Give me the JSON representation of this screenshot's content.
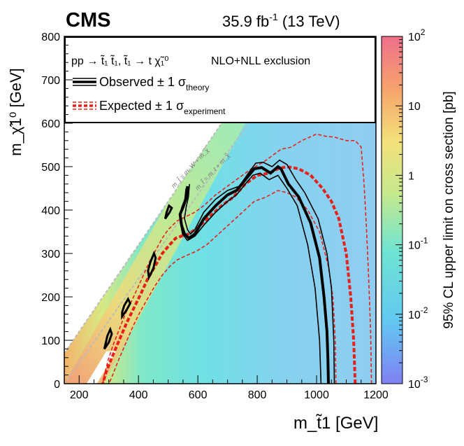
{
  "header": {
    "experiment": "CMS",
    "luminosity": "35.9 fb",
    "lumi_exp": "-1",
    "energy": " (13 TeV)"
  },
  "legend": {
    "process": "pp → t̃₁ t̃₁, t̃₁ → t χ̃₁⁰",
    "exclusion": "NLO+NLL exclusion",
    "observed": "Observed ± 1 σ",
    "observed_sub": "theory",
    "expected": "Expected ± 1 σ",
    "expected_sub": "experiment"
  },
  "colors": {
    "observed": "#000000",
    "expected": "#e8201b",
    "diagonal": "#bbbbbb"
  },
  "chart_data": {
    "type": "heatmap",
    "title": "CMS 35.9 fb-1 (13 TeV)",
    "xlabel": "m_t̃1 [GeV]",
    "ylabel": "m_χ̃1⁰ [GeV]",
    "zlabel": "95% CL upper limit on cross section [pb]",
    "xlim": [
      150,
      1200
    ],
    "ylim": [
      0,
      800
    ],
    "zlim": [
      0.001,
      100
    ],
    "zscale": "log",
    "x_ticks": [
      200,
      400,
      600,
      800,
      1000,
      1200
    ],
    "y_ticks": [
      0,
      100,
      200,
      300,
      400,
      500,
      600,
      700,
      800
    ],
    "z_ticks": [
      {
        "base": "10",
        "exp": "2"
      },
      {
        "base": "10",
        "exp": ""
      },
      {
        "base": "1",
        "exp": ""
      },
      {
        "base": "10",
        "exp": "-1"
      },
      {
        "base": "10",
        "exp": "-2"
      },
      {
        "base": "10",
        "exp": "-3"
      }
    ],
    "diagonal_labels": [
      "m_t̃ = m_W + m_χ̃",
      "m_t̃ = m_t + m_χ̃"
    ],
    "observed_central": [
      [
        1040,
        0
      ],
      [
        1038,
        60
      ],
      [
        1035,
        120
      ],
      [
        1025,
        200
      ],
      [
        1010,
        290
      ],
      [
        980,
        370
      ],
      [
        940,
        430
      ],
      [
        905,
        460
      ],
      [
        880,
        495
      ],
      [
        870,
        500
      ],
      [
        845,
        485
      ],
      [
        815,
        498
      ],
      [
        790,
        495
      ],
      [
        760,
        470
      ],
      [
        730,
        445
      ],
      [
        700,
        435
      ],
      [
        660,
        410
      ],
      [
        620,
        380
      ],
      [
        590,
        345
      ],
      [
        570,
        335
      ],
      [
        555,
        345
      ],
      [
        545,
        365
      ],
      [
        540,
        390
      ],
      [
        552,
        410
      ],
      [
        562,
        430
      ],
      [
        565,
        455
      ]
    ],
    "observed_minus": [
      [
        1015,
        0
      ],
      [
        1010,
        100
      ],
      [
        995,
        220
      ],
      [
        970,
        320
      ],
      [
        935,
        410
      ],
      [
        900,
        450
      ],
      [
        870,
        480
      ],
      [
        840,
        470
      ],
      [
        810,
        485
      ],
      [
        785,
        480
      ],
      [
        760,
        460
      ],
      [
        730,
        435
      ],
      [
        700,
        420
      ],
      [
        660,
        395
      ],
      [
        620,
        365
      ],
      [
        590,
        340
      ],
      [
        565,
        330
      ],
      [
        548,
        345
      ],
      [
        540,
        375
      ],
      [
        545,
        405
      ],
      [
        556,
        425
      ],
      [
        560,
        450
      ]
    ],
    "observed_plus": [
      [
        1060,
        0
      ],
      [
        1058,
        100
      ],
      [
        1050,
        220
      ],
      [
        1035,
        300
      ],
      [
        1005,
        380
      ],
      [
        960,
        440
      ],
      [
        930,
        470
      ],
      [
        900,
        505
      ],
      [
        875,
        515
      ],
      [
        850,
        500
      ],
      [
        820,
        510
      ],
      [
        795,
        508
      ],
      [
        770,
        485
      ],
      [
        740,
        455
      ],
      [
        700,
        445
      ],
      [
        660,
        425
      ],
      [
        620,
        395
      ],
      [
        590,
        355
      ],
      [
        575,
        345
      ],
      [
        565,
        355
      ],
      [
        555,
        380
      ],
      [
        560,
        405
      ],
      [
        568,
        430
      ],
      [
        572,
        460
      ]
    ],
    "expected_central": [
      [
        1130,
        0
      ],
      [
        1125,
        100
      ],
      [
        1115,
        200
      ],
      [
        1100,
        300
      ],
      [
        1075,
        380
      ],
      [
        1050,
        420
      ],
      [
        1020,
        450
      ],
      [
        980,
        480
      ],
      [
        940,
        495
      ],
      [
        900,
        500
      ],
      [
        870,
        495
      ],
      [
        840,
        485
      ],
      [
        800,
        480
      ],
      [
        760,
        460
      ],
      [
        720,
        430
      ],
      [
        680,
        410
      ],
      [
        640,
        385
      ],
      [
        600,
        360
      ],
      [
        570,
        345
      ],
      [
        545,
        340
      ],
      [
        525,
        335
      ],
      [
        505,
        320
      ],
      [
        480,
        300
      ],
      [
        455,
        270
      ],
      [
        430,
        240
      ],
      [
        410,
        210
      ],
      [
        385,
        175
      ],
      [
        360,
        140
      ],
      [
        335,
        100
      ],
      [
        310,
        60
      ],
      [
        290,
        25
      ],
      [
        280,
        0
      ]
    ],
    "expected_minus": [
      [
        1065,
        0
      ],
      [
        1063,
        100
      ],
      [
        1055,
        200
      ],
      [
        1040,
        270
      ],
      [
        1010,
        350
      ],
      [
        970,
        400
      ],
      [
        930,
        430
      ],
      [
        900,
        440
      ],
      [
        870,
        445
      ],
      [
        830,
        430
      ],
      [
        790,
        420
      ],
      [
        750,
        395
      ],
      [
        710,
        370
      ],
      [
        670,
        345
      ],
      [
        630,
        320
      ],
      [
        595,
        305
      ],
      [
        560,
        295
      ],
      [
        530,
        285
      ],
      [
        505,
        270
      ],
      [
        480,
        250
      ],
      [
        455,
        225
      ],
      [
        430,
        195
      ],
      [
        405,
        165
      ],
      [
        380,
        130
      ],
      [
        355,
        90
      ],
      [
        330,
        50
      ],
      [
        310,
        15
      ],
      [
        300,
        0
      ]
    ],
    "expected_plus": [
      [
        1185,
        0
      ],
      [
        1182,
        120
      ],
      [
        1175,
        250
      ],
      [
        1168,
        360
      ],
      [
        1160,
        460
      ],
      [
        1150,
        545
      ],
      [
        1130,
        560
      ],
      [
        1100,
        560
      ],
      [
        1060,
        568
      ],
      [
        1030,
        570
      ],
      [
        1000,
        575
      ],
      [
        950,
        560
      ],
      [
        915,
        545
      ],
      [
        880,
        540
      ],
      [
        850,
        525
      ],
      [
        820,
        510
      ],
      [
        780,
        495
      ],
      [
        740,
        475
      ],
      [
        700,
        455
      ],
      [
        660,
        435
      ],
      [
        620,
        410
      ],
      [
        590,
        395
      ],
      [
        560,
        385
      ],
      [
        530,
        375
      ],
      [
        500,
        355
      ],
      [
        480,
        335
      ],
      [
        460,
        310
      ],
      [
        440,
        285
      ],
      [
        420,
        255
      ],
      [
        400,
        225
      ],
      [
        380,
        195
      ],
      [
        355,
        160
      ],
      [
        335,
        125
      ],
      [
        315,
        90
      ],
      [
        298,
        55
      ],
      [
        285,
        20
      ],
      [
        280,
        0
      ]
    ],
    "islands": [
      {
        "name": "island-1",
        "points": [
          [
            285,
            80
          ],
          [
            300,
            95
          ],
          [
            310,
            115
          ],
          [
            305,
            125
          ],
          [
            295,
            110
          ],
          [
            290,
            95
          ]
        ]
      },
      {
        "name": "island-2",
        "points": [
          [
            345,
            155
          ],
          [
            360,
            170
          ],
          [
            372,
            185
          ],
          [
            365,
            195
          ],
          [
            352,
            180
          ],
          [
            345,
            165
          ]
        ]
      },
      {
        "name": "island-3",
        "points": [
          [
            435,
            245
          ],
          [
            450,
            265
          ],
          [
            458,
            290
          ],
          [
            452,
            300
          ],
          [
            440,
            280
          ],
          [
            432,
            260
          ]
        ]
      },
      {
        "name": "island-4",
        "points": [
          [
            490,
            380
          ],
          [
            505,
            395
          ],
          [
            512,
            405
          ],
          [
            503,
            410
          ],
          [
            495,
            395
          ]
        ]
      }
    ]
  }
}
